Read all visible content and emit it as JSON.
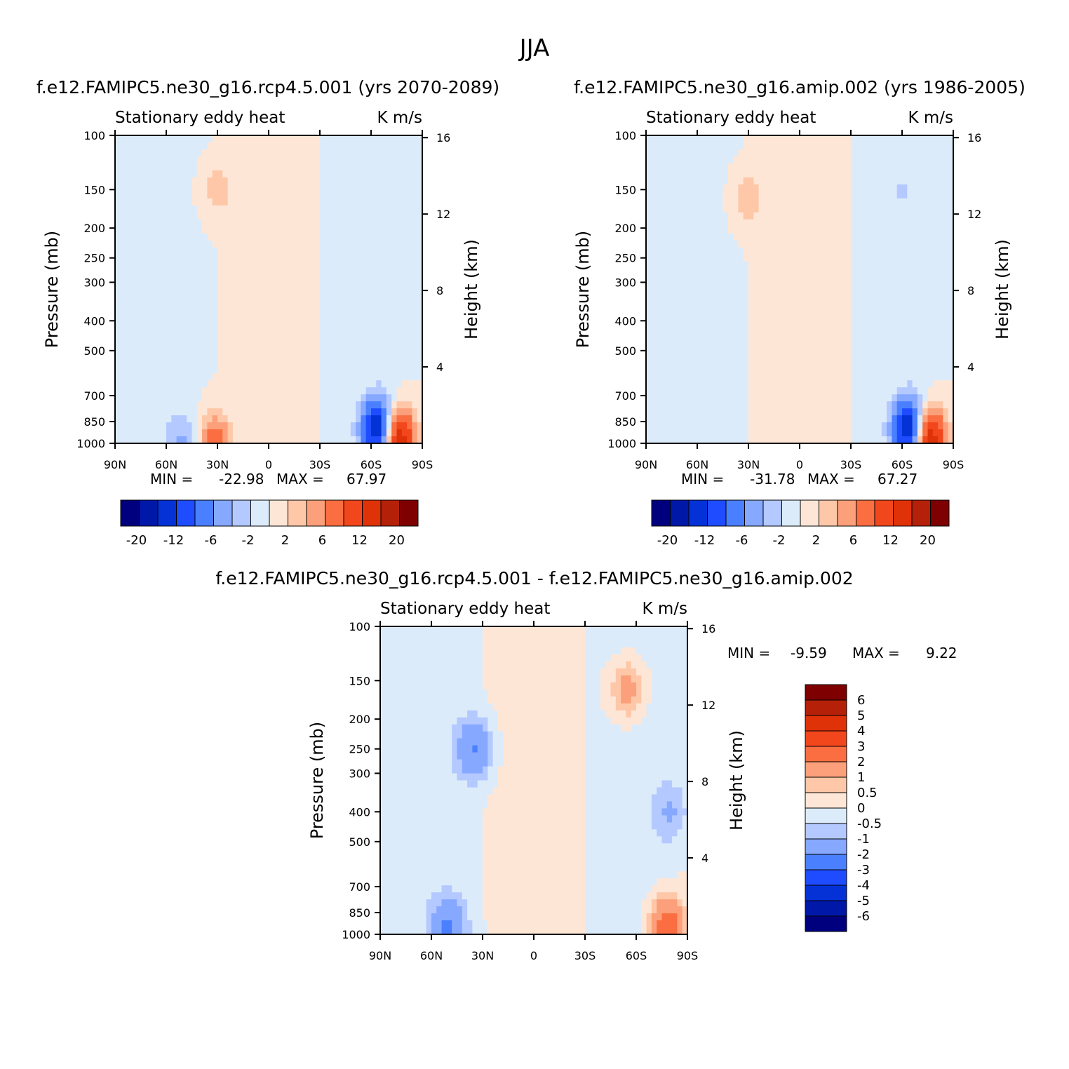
{
  "figure": {
    "title": "JJA"
  },
  "chart_data": [
    {
      "type": "heatmap",
      "panel": "top-left",
      "title": "f.e12.FAMIPC5.ne30_g16.rcp4.5.001 (yrs 2070-2089)",
      "left_label": "Stationary eddy heat",
      "right_label": "K m/s",
      "ylabel": "Pressure (mb)",
      "ylabel_right": "Height (km)",
      "x_ticks": [
        "90N",
        "60N",
        "30N",
        "0",
        "30S",
        "60S",
        "90S"
      ],
      "x_range": [
        90,
        -90
      ],
      "y_ticks": [
        "100",
        "150",
        "200",
        "250",
        "300",
        "400",
        "500",
        "700",
        "850",
        "1000"
      ],
      "y_range_mb": [
        100,
        1000
      ],
      "y_scale": "log",
      "height_ticks": [
        "16",
        "12",
        "8",
        "4"
      ],
      "min_label": "MIN =",
      "min_value": "-22.98",
      "max_label": "MAX =",
      "max_value": "67.97",
      "colorbar": {
        "orientation": "horizontal",
        "labels": [
          "-20",
          "-12",
          "-6",
          "-2",
          "2",
          "6",
          "12",
          "20"
        ]
      },
      "features": [
        {
          "lat": 30,
          "p": 150,
          "value": 3,
          "note": "upper positive core"
        },
        {
          "lat": -65,
          "p": 900,
          "value": -18,
          "note": "low-level negative core"
        },
        {
          "lat": -75,
          "p": 950,
          "value": 18,
          "note": "near-surface positive core"
        },
        {
          "lat": 32,
          "p": 990,
          "value": 8,
          "note": "surface positive"
        },
        {
          "lat": 50,
          "p": 990,
          "value": -4,
          "note": "surface negative"
        }
      ]
    },
    {
      "type": "heatmap",
      "panel": "top-right",
      "title": "f.e12.FAMIPC5.ne30_g16.amip.002 (yrs 1986-2005)",
      "left_label": "Stationary eddy heat",
      "right_label": "K m/s",
      "ylabel": "Pressure (mb)",
      "ylabel_right": "Height (km)",
      "x_ticks": [
        "90N",
        "60N",
        "30N",
        "0",
        "30S",
        "60S",
        "90S"
      ],
      "x_range": [
        90,
        -90
      ],
      "y_ticks": [
        "100",
        "150",
        "200",
        "250",
        "300",
        "400",
        "500",
        "700",
        "850",
        "1000"
      ],
      "y_range_mb": [
        100,
        1000
      ],
      "y_scale": "log",
      "height_ticks": [
        "16",
        "12",
        "8",
        "4"
      ],
      "min_label": "MIN =",
      "min_value": "-31.78",
      "max_label": "MAX =",
      "max_value": "67.27",
      "colorbar": {
        "orientation": "horizontal",
        "labels": [
          "-20",
          "-12",
          "-6",
          "-2",
          "2",
          "6",
          "12",
          "20"
        ]
      },
      "features": [
        {
          "lat": 30,
          "p": 160,
          "value": 3,
          "note": "upper positive core"
        },
        {
          "lat": -60,
          "p": 150,
          "value": -1.5,
          "note": "upper negative"
        },
        {
          "lat": -65,
          "p": 900,
          "value": -18,
          "note": "low-level negative core"
        },
        {
          "lat": -75,
          "p": 950,
          "value": 18,
          "note": "near-surface positive core"
        }
      ]
    },
    {
      "type": "heatmap",
      "panel": "bottom",
      "title": "f.e12.FAMIPC5.ne30_g16.rcp4.5.001 - f.e12.FAMIPC5.ne30_g16.amip.002",
      "left_label": "Stationary eddy heat",
      "right_label": "K m/s",
      "ylabel": "Pressure (mb)",
      "ylabel_right": "Height (km)",
      "x_ticks": [
        "90N",
        "60N",
        "30N",
        "0",
        "30S",
        "60S",
        "90S"
      ],
      "x_range": [
        90,
        -90
      ],
      "y_ticks": [
        "100",
        "150",
        "200",
        "250",
        "300",
        "400",
        "500",
        "700",
        "850",
        "1000"
      ],
      "y_range_mb": [
        100,
        1000
      ],
      "y_scale": "log",
      "height_ticks": [
        "16",
        "12",
        "8",
        "4"
      ],
      "min_label": "MIN =",
      "min_value": "-9.59",
      "max_label": "MAX =",
      "max_value": "9.22",
      "colorbar": {
        "orientation": "vertical",
        "labels": [
          "6",
          "5",
          "4",
          "3",
          "2",
          "1",
          "0.5",
          "0",
          "-0.5",
          "-1",
          "-2",
          "-3",
          "-4",
          "-5",
          "-6"
        ]
      },
      "features": [
        {
          "lat": -55,
          "p": 160,
          "value": 1.5,
          "note": "upper positive"
        },
        {
          "lat": 35,
          "p": 250,
          "value": -2,
          "note": "mid negative"
        },
        {
          "lat": -80,
          "p": 400,
          "value": -1,
          "note": "polar negative"
        },
        {
          "lat": -78,
          "p": 950,
          "value": 3,
          "note": "surface positive"
        },
        {
          "lat": 50,
          "p": 950,
          "value": -2,
          "note": "surface negative"
        }
      ]
    }
  ],
  "palette": [
    "#00007f",
    "#0018a8",
    "#0432d6",
    "#1f4cff",
    "#4a80ff",
    "#86a8ff",
    "#b3c9ff",
    "#dcebfa",
    "#fde6d6",
    "#fdc7a8",
    "#fba07a",
    "#fa6e42",
    "#f2461c",
    "#df3208",
    "#b42008",
    "#7f0000"
  ],
  "palette_bottom": [
    "#00007f",
    "#0018a8",
    "#0432d6",
    "#1f4cff",
    "#4a80ff",
    "#86a8ff",
    "#b3c9ff",
    "#dcebfa",
    "#fde6d6",
    "#fdc7a8",
    "#fba07a",
    "#fa6e42",
    "#f2461c",
    "#df3208",
    "#b42008",
    "#7f0000"
  ]
}
